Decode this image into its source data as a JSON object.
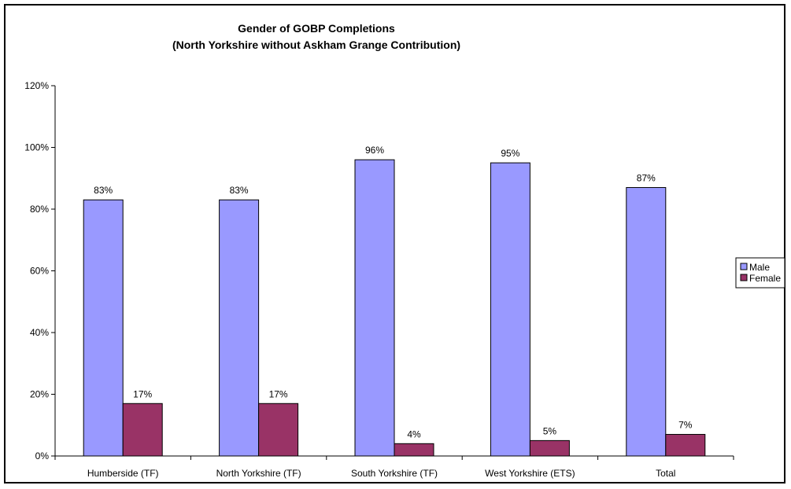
{
  "chart_data": {
    "type": "bar",
    "title": "Gender of GOBP Completions",
    "subtitle": "(North Yorkshire without Askham Grange Contribution)",
    "xlabel": "",
    "ylabel": "",
    "categories": [
      "Humberside (TF)",
      "North Yorkshire (TF)",
      "South Yorkshire (TF)",
      "West Yorkshire (ETS)",
      "Total"
    ],
    "series": [
      {
        "name": "Male",
        "values": [
          83,
          83,
          96,
          95,
          87
        ],
        "labels": [
          "83%",
          "83%",
          "96%",
          "95%",
          "87%"
        ],
        "color": "#9999ff"
      },
      {
        "name": "Female",
        "values": [
          17,
          17,
          4,
          5,
          7
        ],
        "labels": [
          "17%",
          "17%",
          "4%",
          "5%",
          "7%"
        ],
        "color": "#993366"
      }
    ],
    "ylim": [
      0,
      120
    ],
    "yticks": [
      0,
      20,
      40,
      60,
      80,
      100,
      120
    ],
    "ytick_labels": [
      "0%",
      "20%",
      "40%",
      "60%",
      "80%",
      "100%",
      "120%"
    ],
    "grid": false,
    "legend_position": "right"
  }
}
